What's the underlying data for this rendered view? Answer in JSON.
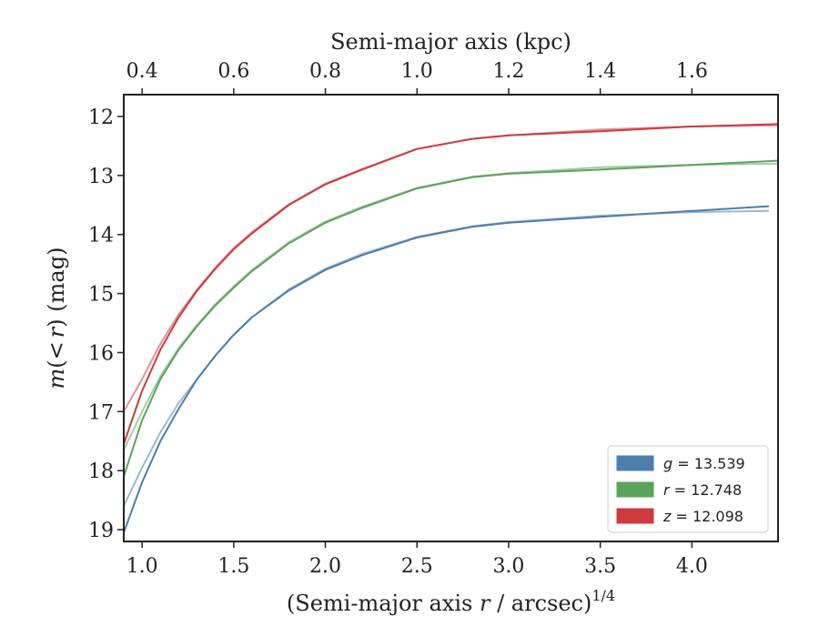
{
  "chart_data": {
    "type": "line",
    "xlabel_top": "Semi-major axis (kpc)",
    "xlabel_bottom": {
      "prefix": "(Semi-major axis ",
      "var": "r",
      "suffix": " / arcsec)",
      "exponent": "1/4"
    },
    "ylabel": {
      "var1": "m",
      "paren_open": "(",
      "op": "<",
      "var2": "r",
      "paren_close": ")",
      "unit": " (mag)"
    },
    "x_bottom": {
      "lim": [
        0.9,
        4.47
      ],
      "ticks": [
        1.0,
        1.5,
        2.0,
        2.5,
        3.0,
        3.5,
        4.0
      ],
      "tick_labels": [
        "1.0",
        "1.5",
        "2.0",
        "2.5",
        "3.0",
        "3.5",
        "4.0"
      ]
    },
    "x_top": {
      "ticks": [
        0.4,
        0.6,
        0.8,
        1.0,
        1.2,
        1.4,
        1.6
      ],
      "tick_labels": [
        "0.4",
        "0.6",
        "0.8",
        "1.0",
        "1.2",
        "1.4",
        "1.6"
      ],
      "kpc_at_x": [
        [
          1.0,
          0.4
        ],
        [
          3.0,
          1.2
        ]
      ]
    },
    "y": {
      "lim": [
        19.2,
        11.63
      ],
      "inverted": true,
      "ticks": [
        12,
        13,
        14,
        15,
        16,
        17,
        18,
        19
      ],
      "tick_labels": [
        "12",
        "13",
        "14",
        "15",
        "16",
        "17",
        "18",
        "19"
      ]
    },
    "legend_position": "lower-right",
    "series": [
      {
        "band": "g",
        "value": "13.539",
        "color": "#4c7eab",
        "x": [
          0.9,
          1.0,
          1.1,
          1.2,
          1.3,
          1.4,
          1.5,
          1.6,
          1.8,
          2.0,
          2.2,
          2.5,
          2.8,
          3.0,
          3.5,
          4.0,
          4.42
        ],
        "y": [
          19.05,
          18.2,
          17.5,
          16.95,
          16.45,
          16.05,
          15.7,
          15.4,
          14.95,
          14.6,
          14.35,
          14.05,
          13.87,
          13.8,
          13.7,
          13.6,
          13.52
        ],
        "y_alt": [
          18.6,
          17.95,
          17.35,
          16.85,
          16.45,
          16.05,
          15.7,
          15.4,
          14.93,
          14.58,
          14.33,
          14.04,
          13.86,
          13.79,
          13.68,
          13.62,
          13.6
        ]
      },
      {
        "band": "r",
        "value": "12.748",
        "color": "#5aa35a",
        "x": [
          0.9,
          1.0,
          1.1,
          1.2,
          1.3,
          1.4,
          1.5,
          1.6,
          1.8,
          2.0,
          2.2,
          2.5,
          2.8,
          3.0,
          3.5,
          4.0,
          4.47
        ],
        "y": [
          18.1,
          17.15,
          16.45,
          15.95,
          15.55,
          15.2,
          14.9,
          14.62,
          14.15,
          13.8,
          13.55,
          13.22,
          13.03,
          12.97,
          12.9,
          12.82,
          12.75
        ],
        "y_alt": [
          17.65,
          17.0,
          16.4,
          15.92,
          15.53,
          15.18,
          14.88,
          14.6,
          14.13,
          13.78,
          13.53,
          13.21,
          13.02,
          12.96,
          12.86,
          12.82,
          12.8
        ]
      },
      {
        "band": "z",
        "value": "12.098",
        "color": "#cf3a3f",
        "x": [
          0.9,
          1.0,
          1.1,
          1.2,
          1.3,
          1.4,
          1.5,
          1.6,
          1.8,
          2.0,
          2.2,
          2.5,
          2.8,
          3.0,
          3.5,
          4.0,
          4.47
        ],
        "y": [
          17.55,
          16.65,
          15.95,
          15.4,
          14.95,
          14.58,
          14.25,
          13.98,
          13.5,
          13.15,
          12.9,
          12.55,
          12.38,
          12.32,
          12.25,
          12.17,
          12.13
        ],
        "y_alt": [
          17.0,
          16.45,
          15.85,
          15.35,
          14.93,
          14.56,
          14.23,
          13.96,
          13.49,
          13.14,
          12.89,
          12.55,
          12.38,
          12.32,
          12.22,
          12.17,
          12.15
        ]
      }
    ]
  }
}
